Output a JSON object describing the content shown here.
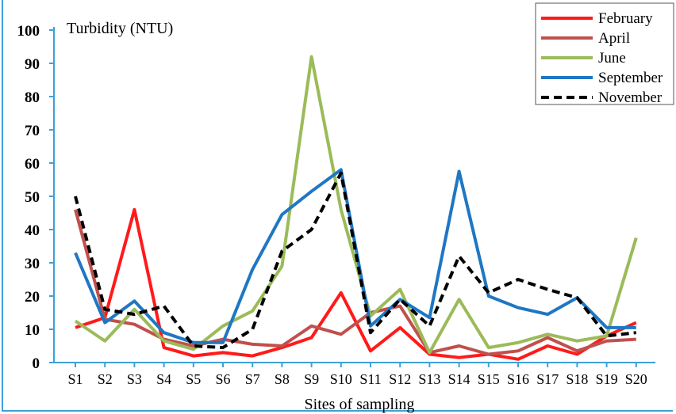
{
  "chart_data": {
    "type": "line",
    "title": "",
    "ylabel": "Turbidity (NTU)",
    "xlabel": "Sites of sampling",
    "ylim": [
      0,
      100
    ],
    "yticks": [
      0,
      10,
      20,
      30,
      40,
      50,
      60,
      70,
      80,
      90,
      100
    ],
    "categories": [
      "S1",
      "S2",
      "S3",
      "S4",
      "S5",
      "S6",
      "S7",
      "S8",
      "S9",
      "S10",
      "S11",
      "S12",
      "S13",
      "S14",
      "S15",
      "S16",
      "S17",
      "S18",
      "S19",
      "S20"
    ],
    "legend_position": "top-right",
    "series": [
      {
        "name": "February",
        "color": "#ff1a1a",
        "dash": "solid",
        "values": [
          10.5,
          13.5,
          46,
          4.5,
          2,
          3,
          2,
          4.5,
          7.5,
          21,
          3.5,
          10.5,
          2.5,
          1.5,
          2.5,
          1,
          5,
          2.5,
          8,
          12
        ]
      },
      {
        "name": "April",
        "color": "#c0504d",
        "dash": "solid",
        "values": [
          46,
          13,
          11.5,
          7,
          5,
          7,
          5.5,
          5,
          11,
          8.5,
          15,
          17,
          3,
          5,
          2.5,
          3.5,
          7.5,
          3.5,
          6.5,
          7
        ]
      },
      {
        "name": "June",
        "color": "#9bbb59",
        "dash": "solid",
        "values": [
          12.5,
          6.5,
          16,
          6.5,
          4,
          11,
          15.5,
          29,
          92,
          46,
          14,
          22,
          3,
          19,
          4.5,
          6,
          8.5,
          6.5,
          8,
          37.5
        ]
      },
      {
        "name": "September",
        "color": "#1f77c4",
        "dash": "solid",
        "values": [
          33,
          12,
          18.5,
          9,
          6,
          6,
          28,
          44.5,
          51.5,
          58,
          11,
          19,
          13.5,
          57.5,
          20,
          16.5,
          14.5,
          19.5,
          10.5,
          10.5
        ]
      },
      {
        "name": "November",
        "color": "#000000",
        "dash": "dashed",
        "values": [
          50,
          16,
          14.5,
          17,
          5,
          4.5,
          10,
          33.5,
          40,
          57,
          9,
          19,
          11,
          32,
          21,
          25,
          22,
          19.5,
          8,
          9
        ]
      }
    ]
  }
}
